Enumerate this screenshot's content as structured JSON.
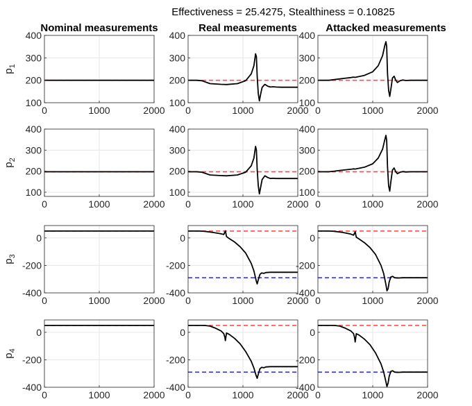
{
  "figure": {
    "title": "Effectiveness = 25.4275, Stealthiness = 0.10825",
    "columns": [
      "Nominal measurements",
      "Real measurements",
      "Attacked measurements"
    ]
  },
  "colors": {
    "measurement": "#000000",
    "reference_initial": "#ff4d4d",
    "reference_final": "#3333ff",
    "grid": "#e6e6e6",
    "axis": "#262626"
  },
  "chart_data": [
    {
      "type": "line",
      "row": 0,
      "col": 0,
      "ylabel_base": "p",
      "ylabel_sub": "1",
      "xlim": [
        0,
        2000
      ],
      "ylim": [
        100,
        400
      ],
      "xticks": [
        0,
        1000,
        2000
      ],
      "yticks": [
        100,
        200,
        300,
        400
      ],
      "ref_lines": [
        {
          "y": 200,
          "color": "reference_initial"
        }
      ],
      "series": [
        {
          "x": [
            0,
            2000
          ],
          "y": [
            200,
            200
          ]
        }
      ]
    },
    {
      "type": "line",
      "row": 0,
      "col": 1,
      "xlim": [
        0,
        2000
      ],
      "ylim": [
        100,
        400
      ],
      "xticks": [
        0,
        1000,
        2000
      ],
      "yticks": [
        100,
        200,
        300,
        400
      ],
      "ref_lines": [
        {
          "y": 200,
          "color": "reference_initial"
        }
      ],
      "series": [
        {
          "x": [
            0,
            150,
            250,
            400,
            600,
            700,
            900,
            1050,
            1150,
            1200,
            1230,
            1245,
            1260,
            1280,
            1300,
            1320,
            1350,
            1400,
            1450,
            1500,
            1550,
            1600,
            1700,
            1800,
            2000
          ],
          "y": [
            200,
            200,
            198,
            185,
            182,
            181,
            185,
            198,
            228,
            265,
            318,
            305,
            220,
            140,
            108,
            135,
            168,
            182,
            174,
            170,
            171,
            170,
            169,
            169,
            169
          ]
        }
      ]
    },
    {
      "type": "line",
      "row": 0,
      "col": 2,
      "xlim": [
        0,
        2000
      ],
      "ylim": [
        100,
        400
      ],
      "xticks": [
        0,
        1000,
        2000
      ],
      "yticks": [
        100,
        200,
        300,
        400
      ],
      "ref_lines": [
        {
          "y": 200,
          "color": "reference_initial"
        }
      ],
      "series": [
        {
          "x": [
            0,
            200,
            300,
            450,
            600,
            650,
            680,
            700,
            850,
            1000,
            1100,
            1180,
            1220,
            1240,
            1255,
            1270,
            1290,
            1310,
            1330,
            1360,
            1390,
            1420,
            1450,
            1500,
            1550,
            1600,
            1700,
            2000
          ],
          "y": [
            200,
            200,
            203,
            208,
            212,
            214,
            213,
            214,
            222,
            238,
            265,
            310,
            355,
            372,
            350,
            230,
            155,
            128,
            160,
            210,
            218,
            200,
            190,
            198,
            201,
            199,
            200,
            200
          ]
        }
      ]
    },
    {
      "type": "line",
      "row": 1,
      "col": 0,
      "ylabel_base": "p",
      "ylabel_sub": "2",
      "xlim": [
        0,
        2000
      ],
      "ylim": [
        80,
        400
      ],
      "xticks": [
        0,
        1000,
        2000
      ],
      "yticks": [
        100,
        200,
        300,
        400
      ],
      "ref_lines": [
        {
          "y": 197,
          "color": "reference_initial"
        }
      ],
      "series": [
        {
          "x": [
            0,
            2000
          ],
          "y": [
            197,
            197
          ]
        }
      ]
    },
    {
      "type": "line",
      "row": 1,
      "col": 1,
      "xlim": [
        0,
        2000
      ],
      "ylim": [
        80,
        400
      ],
      "xticks": [
        0,
        1000,
        2000
      ],
      "yticks": [
        100,
        200,
        300,
        400
      ],
      "ref_lines": [
        {
          "y": 197,
          "color": "reference_initial"
        }
      ],
      "series": [
        {
          "x": [
            0,
            150,
            250,
            400,
            600,
            700,
            900,
            1050,
            1150,
            1200,
            1230,
            1245,
            1260,
            1280,
            1300,
            1320,
            1350,
            1400,
            1450,
            1500,
            1550,
            1600,
            1700,
            1800,
            2000
          ],
          "y": [
            197,
            197,
            195,
            182,
            179,
            178,
            182,
            195,
            225,
            262,
            318,
            300,
            210,
            130,
            92,
            120,
            160,
            178,
            170,
            165,
            166,
            165,
            165,
            165,
            165
          ]
        }
      ]
    },
    {
      "type": "line",
      "row": 1,
      "col": 2,
      "xlim": [
        0,
        2000
      ],
      "ylim": [
        80,
        400
      ],
      "xticks": [
        0,
        1000,
        2000
      ],
      "yticks": [
        100,
        200,
        300,
        400
      ],
      "ref_lines": [
        {
          "y": 197,
          "color": "reference_initial"
        }
      ],
      "series": [
        {
          "x": [
            0,
            200,
            300,
            450,
            600,
            650,
            680,
            700,
            850,
            1000,
            1100,
            1180,
            1220,
            1240,
            1255,
            1270,
            1290,
            1310,
            1330,
            1360,
            1390,
            1420,
            1450,
            1500,
            1550,
            1600,
            1700,
            2000
          ],
          "y": [
            197,
            197,
            200,
            205,
            209,
            211,
            210,
            211,
            219,
            235,
            262,
            305,
            350,
            370,
            345,
            220,
            130,
            105,
            150,
            205,
            215,
            197,
            188,
            195,
            198,
            196,
            197,
            197
          ]
        }
      ]
    },
    {
      "type": "line",
      "row": 2,
      "col": 0,
      "ylabel_base": "p",
      "ylabel_sub": "3",
      "xlim": [
        0,
        2000
      ],
      "ylim": [
        -400,
        90
      ],
      "xticks": [
        0,
        1000,
        2000
      ],
      "yticks": [
        -400,
        -200,
        0
      ],
      "ref_lines": [
        {
          "y": 50,
          "color": "reference_initial"
        }
      ],
      "series": [
        {
          "x": [
            0,
            2000
          ],
          "y": [
            50,
            50
          ]
        }
      ]
    },
    {
      "type": "line",
      "row": 2,
      "col": 1,
      "xlim": [
        0,
        2000
      ],
      "ylim": [
        -400,
        90
      ],
      "xticks": [
        0,
        1000,
        2000
      ],
      "yticks": [
        -400,
        -200,
        0
      ],
      "ref_lines": [
        {
          "y": 50,
          "color": "reference_initial"
        },
        {
          "y": -290,
          "color": "reference_final"
        }
      ],
      "series": [
        {
          "x": [
            0,
            200,
            300,
            450,
            600,
            650,
            680,
            700,
            750,
            850,
            950,
            1050,
            1150,
            1200,
            1240,
            1260,
            1280,
            1310,
            1340,
            1380,
            1420,
            1500,
            1600,
            1800,
            2000
          ],
          "y": [
            50,
            50,
            48,
            40,
            30,
            25,
            52,
            10,
            -5,
            -30,
            -65,
            -110,
            -185,
            -240,
            -310,
            -335,
            -305,
            -265,
            -255,
            -258,
            -252,
            -250,
            -250,
            -250,
            -250
          ]
        }
      ]
    },
    {
      "type": "line",
      "row": 2,
      "col": 2,
      "xlim": [
        0,
        2000
      ],
      "ylim": [
        -400,
        90
      ],
      "xticks": [
        0,
        1000,
        2000
      ],
      "yticks": [
        -400,
        -200,
        0
      ],
      "ref_lines": [
        {
          "y": 50,
          "color": "reference_initial"
        },
        {
          "y": -290,
          "color": "reference_final"
        }
      ],
      "series": [
        {
          "x": [
            0,
            200,
            300,
            450,
            600,
            650,
            680,
            700,
            750,
            850,
            950,
            1050,
            1150,
            1200,
            1240,
            1260,
            1280,
            1300,
            1330,
            1360,
            1400,
            1450,
            1550,
            1700,
            2000
          ],
          "y": [
            50,
            50,
            48,
            40,
            28,
            20,
            45,
            5,
            -8,
            -35,
            -70,
            -120,
            -200,
            -260,
            -340,
            -385,
            -370,
            -320,
            -285,
            -280,
            -290,
            -292,
            -290,
            -290,
            -290
          ]
        }
      ]
    },
    {
      "type": "line",
      "row": 3,
      "col": 0,
      "ylabel_base": "p",
      "ylabel_sub": "4",
      "xlim": [
        0,
        2000
      ],
      "ylim": [
        -400,
        90
      ],
      "xticks": [
        0,
        1000,
        2000
      ],
      "yticks": [
        -400,
        -200,
        0
      ],
      "ref_lines": [
        {
          "y": 50,
          "color": "reference_initial"
        }
      ],
      "series": [
        {
          "x": [
            0,
            2000
          ],
          "y": [
            50,
            50
          ]
        }
      ]
    },
    {
      "type": "line",
      "row": 3,
      "col": 1,
      "xlim": [
        0,
        2000
      ],
      "ylim": [
        -400,
        90
      ],
      "xticks": [
        0,
        1000,
        2000
      ],
      "yticks": [
        -400,
        -200,
        0
      ],
      "ref_lines": [
        {
          "y": 50,
          "color": "reference_initial"
        },
        {
          "y": -290,
          "color": "reference_final"
        }
      ],
      "series": [
        {
          "x": [
            0,
            300,
            400,
            500,
            600,
            650,
            670,
            680,
            700,
            750,
            850,
            950,
            1050,
            1150,
            1200,
            1240,
            1260,
            1280,
            1310,
            1340,
            1380,
            1420,
            1500,
            1600,
            1800,
            2000
          ],
          "y": [
            50,
            50,
            45,
            30,
            10,
            -10,
            -35,
            -60,
            -5,
            -15,
            -45,
            -85,
            -140,
            -210,
            -260,
            -315,
            -335,
            -305,
            -265,
            -255,
            -258,
            -252,
            -250,
            -250,
            -250,
            -250
          ]
        }
      ]
    },
    {
      "type": "line",
      "row": 3,
      "col": 2,
      "xlim": [
        0,
        2000
      ],
      "ylim": [
        -400,
        90
      ],
      "xticks": [
        0,
        1000,
        2000
      ],
      "yticks": [
        -400,
        -200,
        0
      ],
      "ref_lines": [
        {
          "y": 50,
          "color": "reference_initial"
        },
        {
          "y": -290,
          "color": "reference_final"
        }
      ],
      "series": [
        {
          "x": [
            0,
            300,
            400,
            500,
            600,
            650,
            670,
            680,
            700,
            750,
            850,
            950,
            1050,
            1150,
            1200,
            1240,
            1260,
            1280,
            1300,
            1330,
            1360,
            1400,
            1450,
            1550,
            1700,
            2000
          ],
          "y": [
            50,
            50,
            45,
            30,
            10,
            -10,
            -40,
            -70,
            -10,
            -20,
            -50,
            -90,
            -150,
            -230,
            -290,
            -360,
            -395,
            -370,
            -320,
            -285,
            -280,
            -290,
            -292,
            -290,
            -290,
            -290
          ]
        }
      ]
    }
  ]
}
